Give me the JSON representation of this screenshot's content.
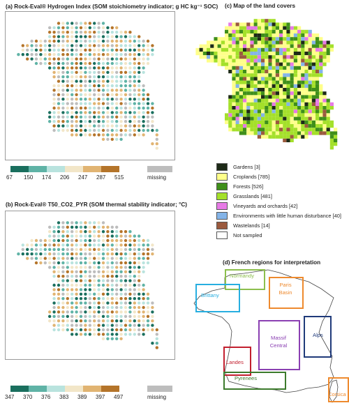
{
  "panel_a": {
    "title": "(a) Rock-Eval® Hydrogen Index (SOM stoichiometry indicator; g HC kg⁻¹ SOC)",
    "legend_ticks": [
      "67",
      "150",
      "174",
      "206",
      "247",
      "287",
      "515"
    ],
    "legend_colors": [
      "#1a6f5e",
      "#5fb3a6",
      "#b9e3de",
      "#f2e6c8",
      "#e1b472",
      "#b4742a"
    ],
    "missing_label": "missing",
    "missing_color": "#bdbdbd"
  },
  "panel_b": {
    "title": "(b) Rock-Eval® T50_CO2_PYR (SOM thermal stability indicator; °C)",
    "legend_ticks": [
      "347",
      "370",
      "376",
      "383",
      "389",
      "397",
      "497"
    ],
    "legend_colors": [
      "#1a6f5e",
      "#5fb3a6",
      "#b9e3de",
      "#f2e6c8",
      "#e1b472",
      "#b4742a"
    ],
    "missing_label": "missing",
    "missing_color": "#bdbdbd"
  },
  "panel_c": {
    "title": "(c) Map of the land covers",
    "legend": [
      {
        "label": "Gardens [3]",
        "color": "#1d2a17"
      },
      {
        "label": "Croplands [785]",
        "color": "#ffff8a"
      },
      {
        "label": "Forests [526]",
        "color": "#3f8f1a"
      },
      {
        "label": "Grasslands [481]",
        "color": "#a4e02a"
      },
      {
        "label": "Vineyards and orchards [42]",
        "color": "#e77ae6"
      },
      {
        "label": "Environments with little human disturbance [40]",
        "color": "#84b4e8"
      },
      {
        "label": "Wastelands [14]",
        "color": "#9b5a3e"
      },
      {
        "label": "Not sampled",
        "color": "#ffffff"
      }
    ]
  },
  "panel_d": {
    "title": "(d) French regions for interpretation",
    "regions": [
      {
        "label": "Normandy",
        "color": "#8cbf4d"
      },
      {
        "label": "Paris\nBasin",
        "color": "#ee8a2e"
      },
      {
        "label": "Brittany",
        "color": "#27aee0"
      },
      {
        "label": "Massif\nCentral",
        "color": "#8a3fb2"
      },
      {
        "label": "Alps",
        "color": "#1f3a7a"
      },
      {
        "label": "Landes",
        "color": "#c21f2e"
      },
      {
        "label": "Pyrenees",
        "color": "#3c7a2c"
      },
      {
        "label": "Corsica",
        "color": "#ee8a2e"
      }
    ]
  }
}
